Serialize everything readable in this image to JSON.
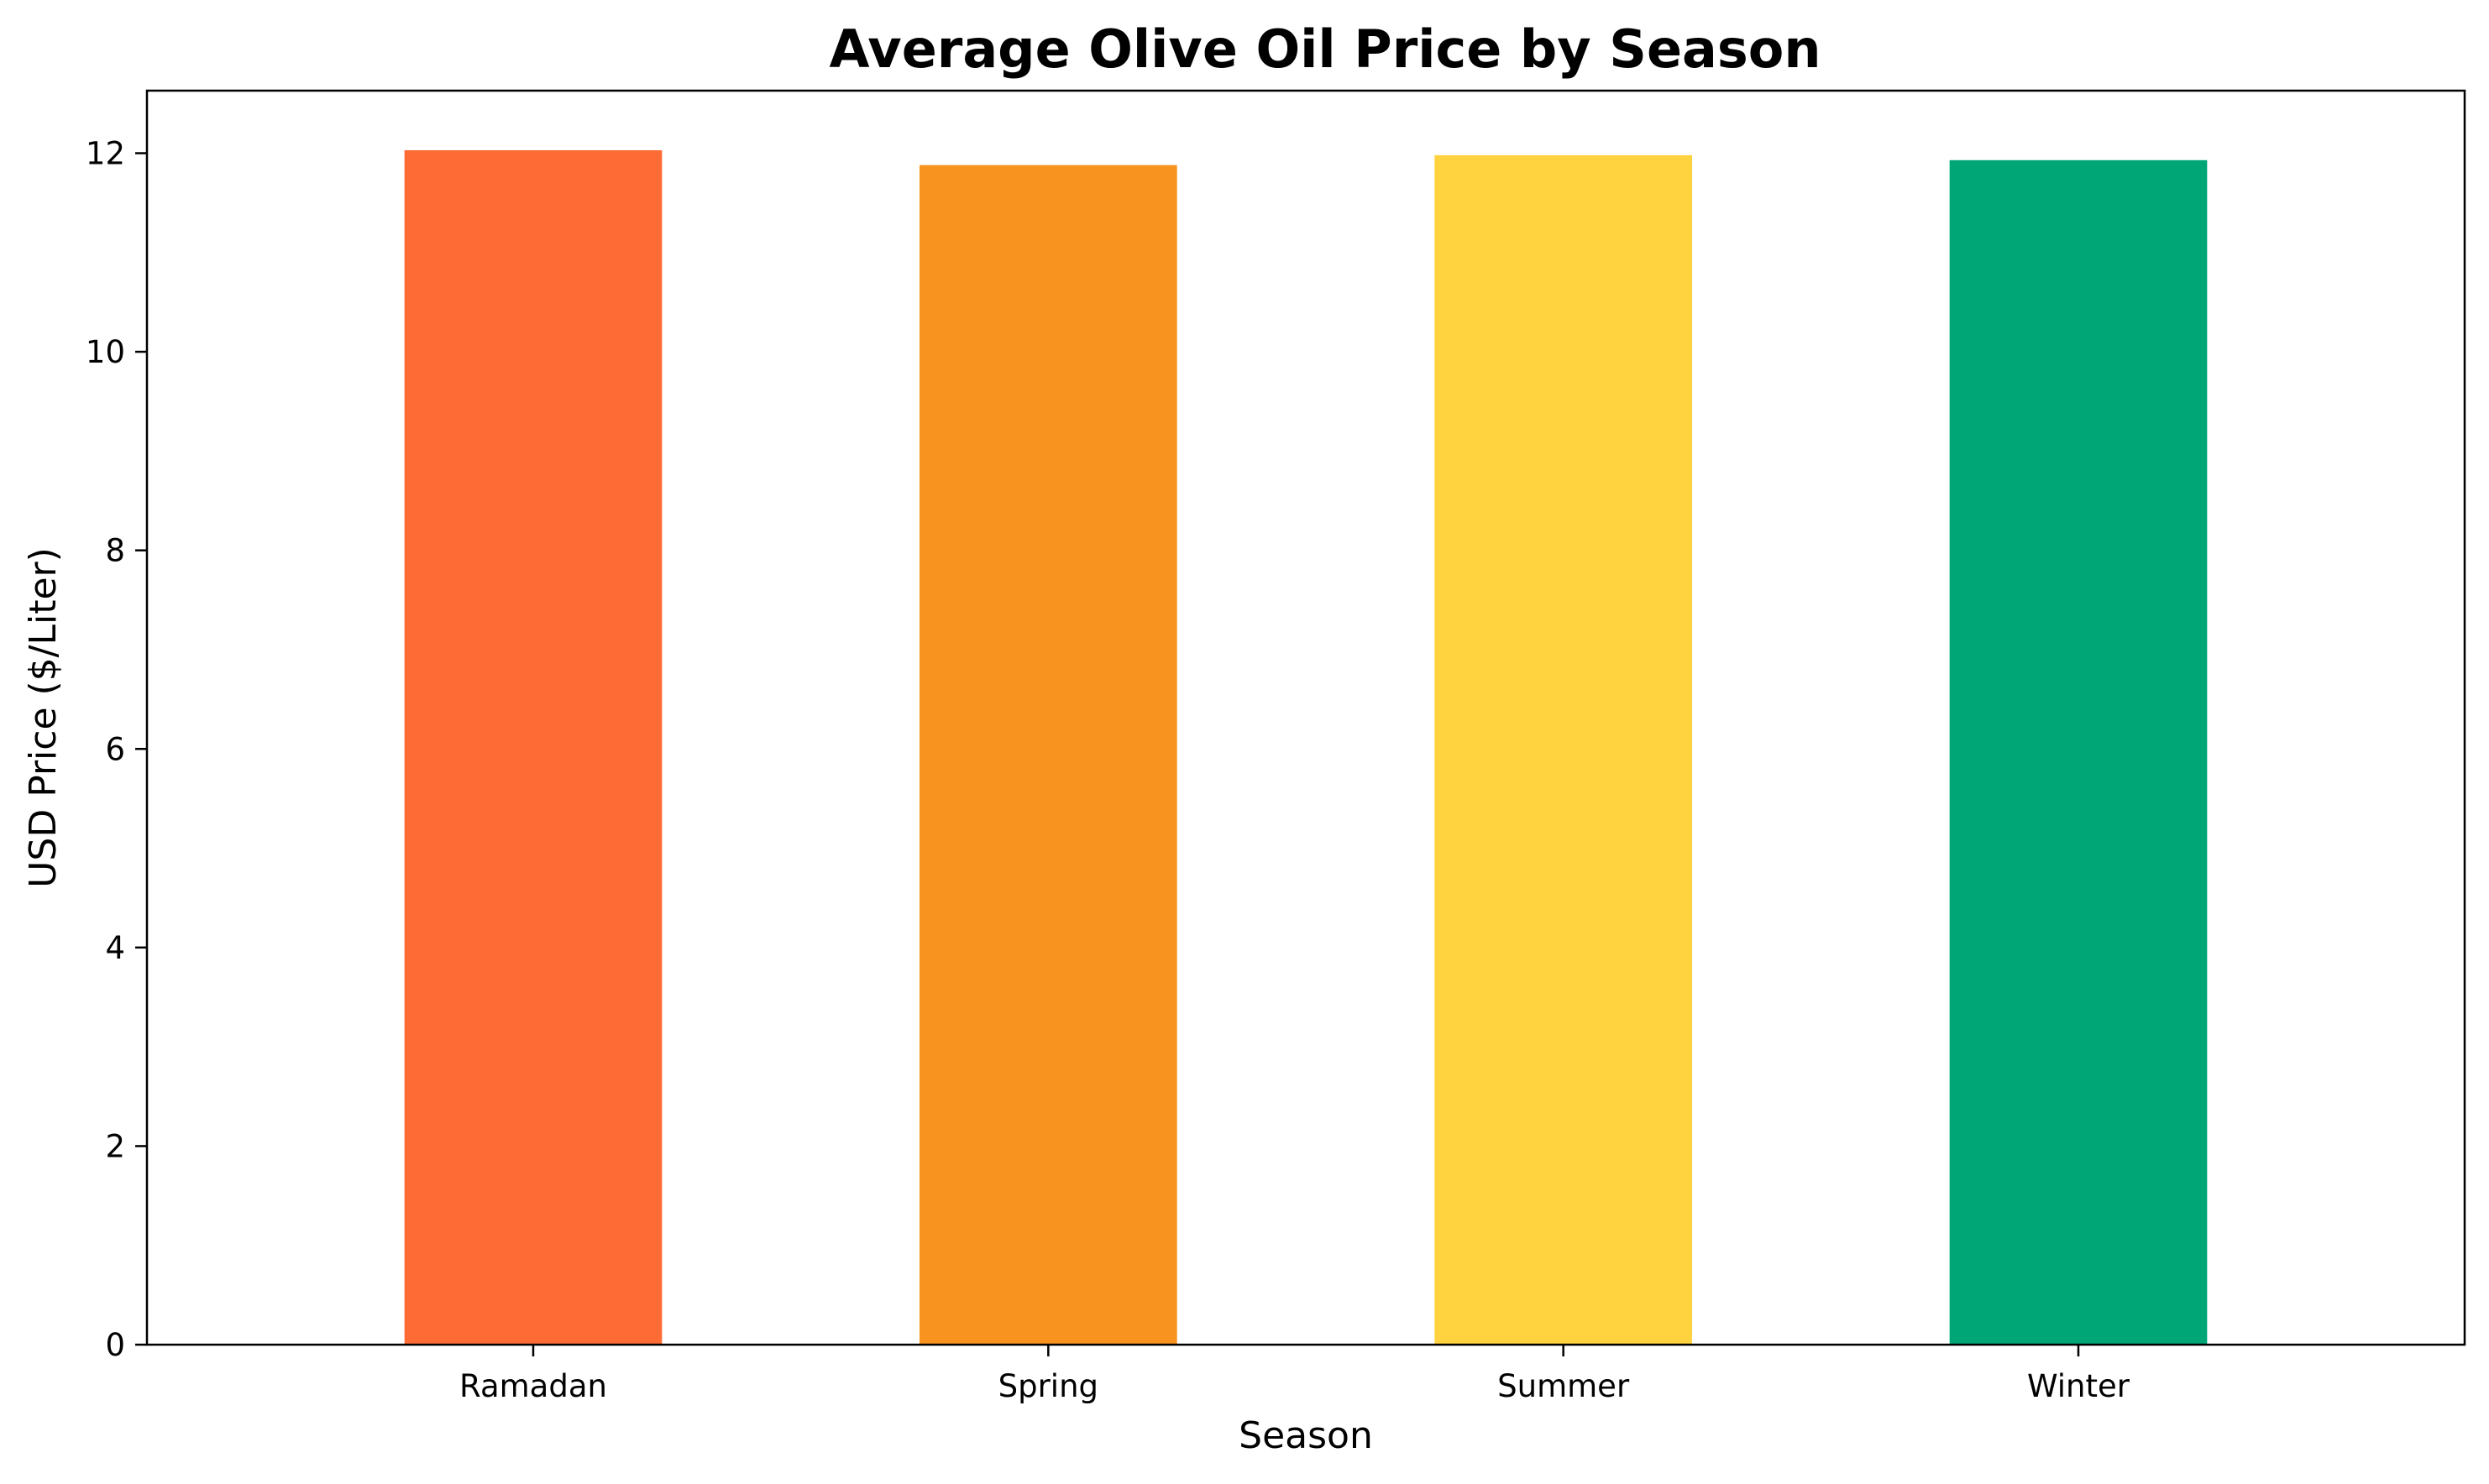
{
  "chart_data": {
    "type": "bar",
    "title": "Average Olive Oil Price by Season",
    "xlabel": "Season",
    "ylabel": "USD Price ($/Liter)",
    "categories": [
      "Ramadan",
      "Spring",
      "Summer",
      "Winter"
    ],
    "values": [
      12.03,
      11.88,
      11.98,
      11.93
    ],
    "colors": [
      "#FF6B35",
      "#F7931E",
      "#FFD23F",
      "#00A676"
    ],
    "ylim": [
      0,
      12.63
    ],
    "yticks": [
      0,
      2,
      4,
      6,
      8,
      10,
      12
    ],
    "grid": false,
    "legend": "none"
  }
}
